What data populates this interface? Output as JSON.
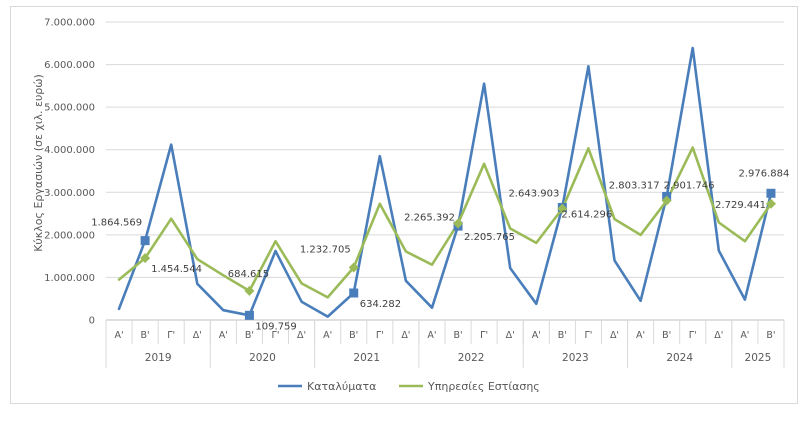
{
  "chart_data": {
    "type": "line",
    "title": "",
    "ylabel": "Κύκλος Εργασιών (σε χιλ. ευρώ)",
    "ylim": [
      0,
      7000000
    ],
    "yticks": [
      "0",
      "1.000.000",
      "2.000.000",
      "3.000.000",
      "4.000.000",
      "5.000.000",
      "6.000.000",
      "7.000.000"
    ],
    "grid": true,
    "legend_position": "bottom",
    "quarters": [
      "Α'",
      "Β'",
      "Γ'",
      "Δ'",
      "Α'",
      "Β'",
      "Γ'",
      "Δ'",
      "Α'",
      "Β'",
      "Γ'",
      "Δ'",
      "Α'",
      "Β'",
      "Γ'",
      "Δ'",
      "Α'",
      "Β'",
      "Γ'",
      "Δ'",
      "Α'",
      "Β'",
      "Γ'",
      "Δ'",
      "Α'",
      "Β'"
    ],
    "years": [
      {
        "label": "2019",
        "start": 0,
        "count": 4
      },
      {
        "label": "2020",
        "start": 4,
        "count": 4
      },
      {
        "label": "2021",
        "start": 8,
        "count": 4
      },
      {
        "label": "2022",
        "start": 12,
        "count": 4
      },
      {
        "label": "2023",
        "start": 16,
        "count": 4
      },
      {
        "label": "2024",
        "start": 20,
        "count": 4
      },
      {
        "label": "2025",
        "start": 24,
        "count": 2
      }
    ],
    "series": [
      {
        "name": "Καταλύματα",
        "color": "#4a7ebb",
        "values": [
          260000,
          1864569,
          4120000,
          850000,
          230000,
          109759,
          1620000,
          430000,
          80000,
          634282,
          3850000,
          920000,
          290000,
          2205765,
          5550000,
          1220000,
          380000,
          2643903,
          5960000,
          1400000,
          450000,
          2901746,
          6390000,
          1630000,
          480000,
          2976884
        ],
        "markers": [
          {
            "index": 1,
            "label": "1.864.569"
          },
          {
            "index": 5,
            "label": "109.759"
          },
          {
            "index": 9,
            "label": "634.282"
          },
          {
            "index": 13,
            "label": "2.205.765"
          },
          {
            "index": 17,
            "label": "2.643.903"
          },
          {
            "index": 21,
            "label": "2.901.746"
          },
          {
            "index": 25,
            "label": "2.976.884"
          }
        ]
      },
      {
        "name": "Υπηρεσίες Εστίασης",
        "color": "#9bbb59",
        "values": [
          950000,
          1454544,
          2380000,
          1430000,
          1050000,
          684615,
          1850000,
          860000,
          530000,
          1232705,
          2730000,
          1610000,
          1300000,
          2265392,
          3670000,
          2150000,
          1810000,
          2614296,
          4030000,
          2370000,
          2000000,
          2803317,
          4050000,
          2290000,
          1850000,
          2729441
        ],
        "markers": [
          {
            "index": 1,
            "label": "1.454.544"
          },
          {
            "index": 5,
            "label": "684.615"
          },
          {
            "index": 9,
            "label": "1.232.705"
          },
          {
            "index": 13,
            "label": "2.265.392"
          },
          {
            "index": 17,
            "label": "2.614.296"
          },
          {
            "index": 21,
            "label": "2.803.317"
          },
          {
            "index": 25,
            "label": "2.729.441"
          }
        ]
      }
    ]
  }
}
